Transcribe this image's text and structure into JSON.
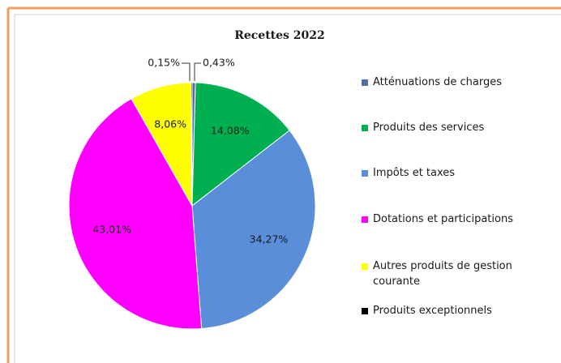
{
  "chart_data": {
    "type": "pie",
    "title": "Recettes 2022",
    "categories": [
      "Atténuations de charges",
      "Produits des services",
      "Impôts et taxes",
      "Dotations et participations",
      "Autres produits de gestion courante",
      "Produits exceptionnels"
    ],
    "values": [
      0.43,
      14.08,
      34.27,
      43.01,
      8.06,
      0.15
    ],
    "value_labels": [
      "0,43%",
      "14,08%",
      "34,27%",
      "43,01%",
      "8,06%",
      "0,15%"
    ],
    "colors": [
      "#4f6fa5",
      "#00b050",
      "#5b8ed8",
      "#ff00ff",
      "#ffff00",
      "#000000"
    ],
    "legend": "right"
  }
}
